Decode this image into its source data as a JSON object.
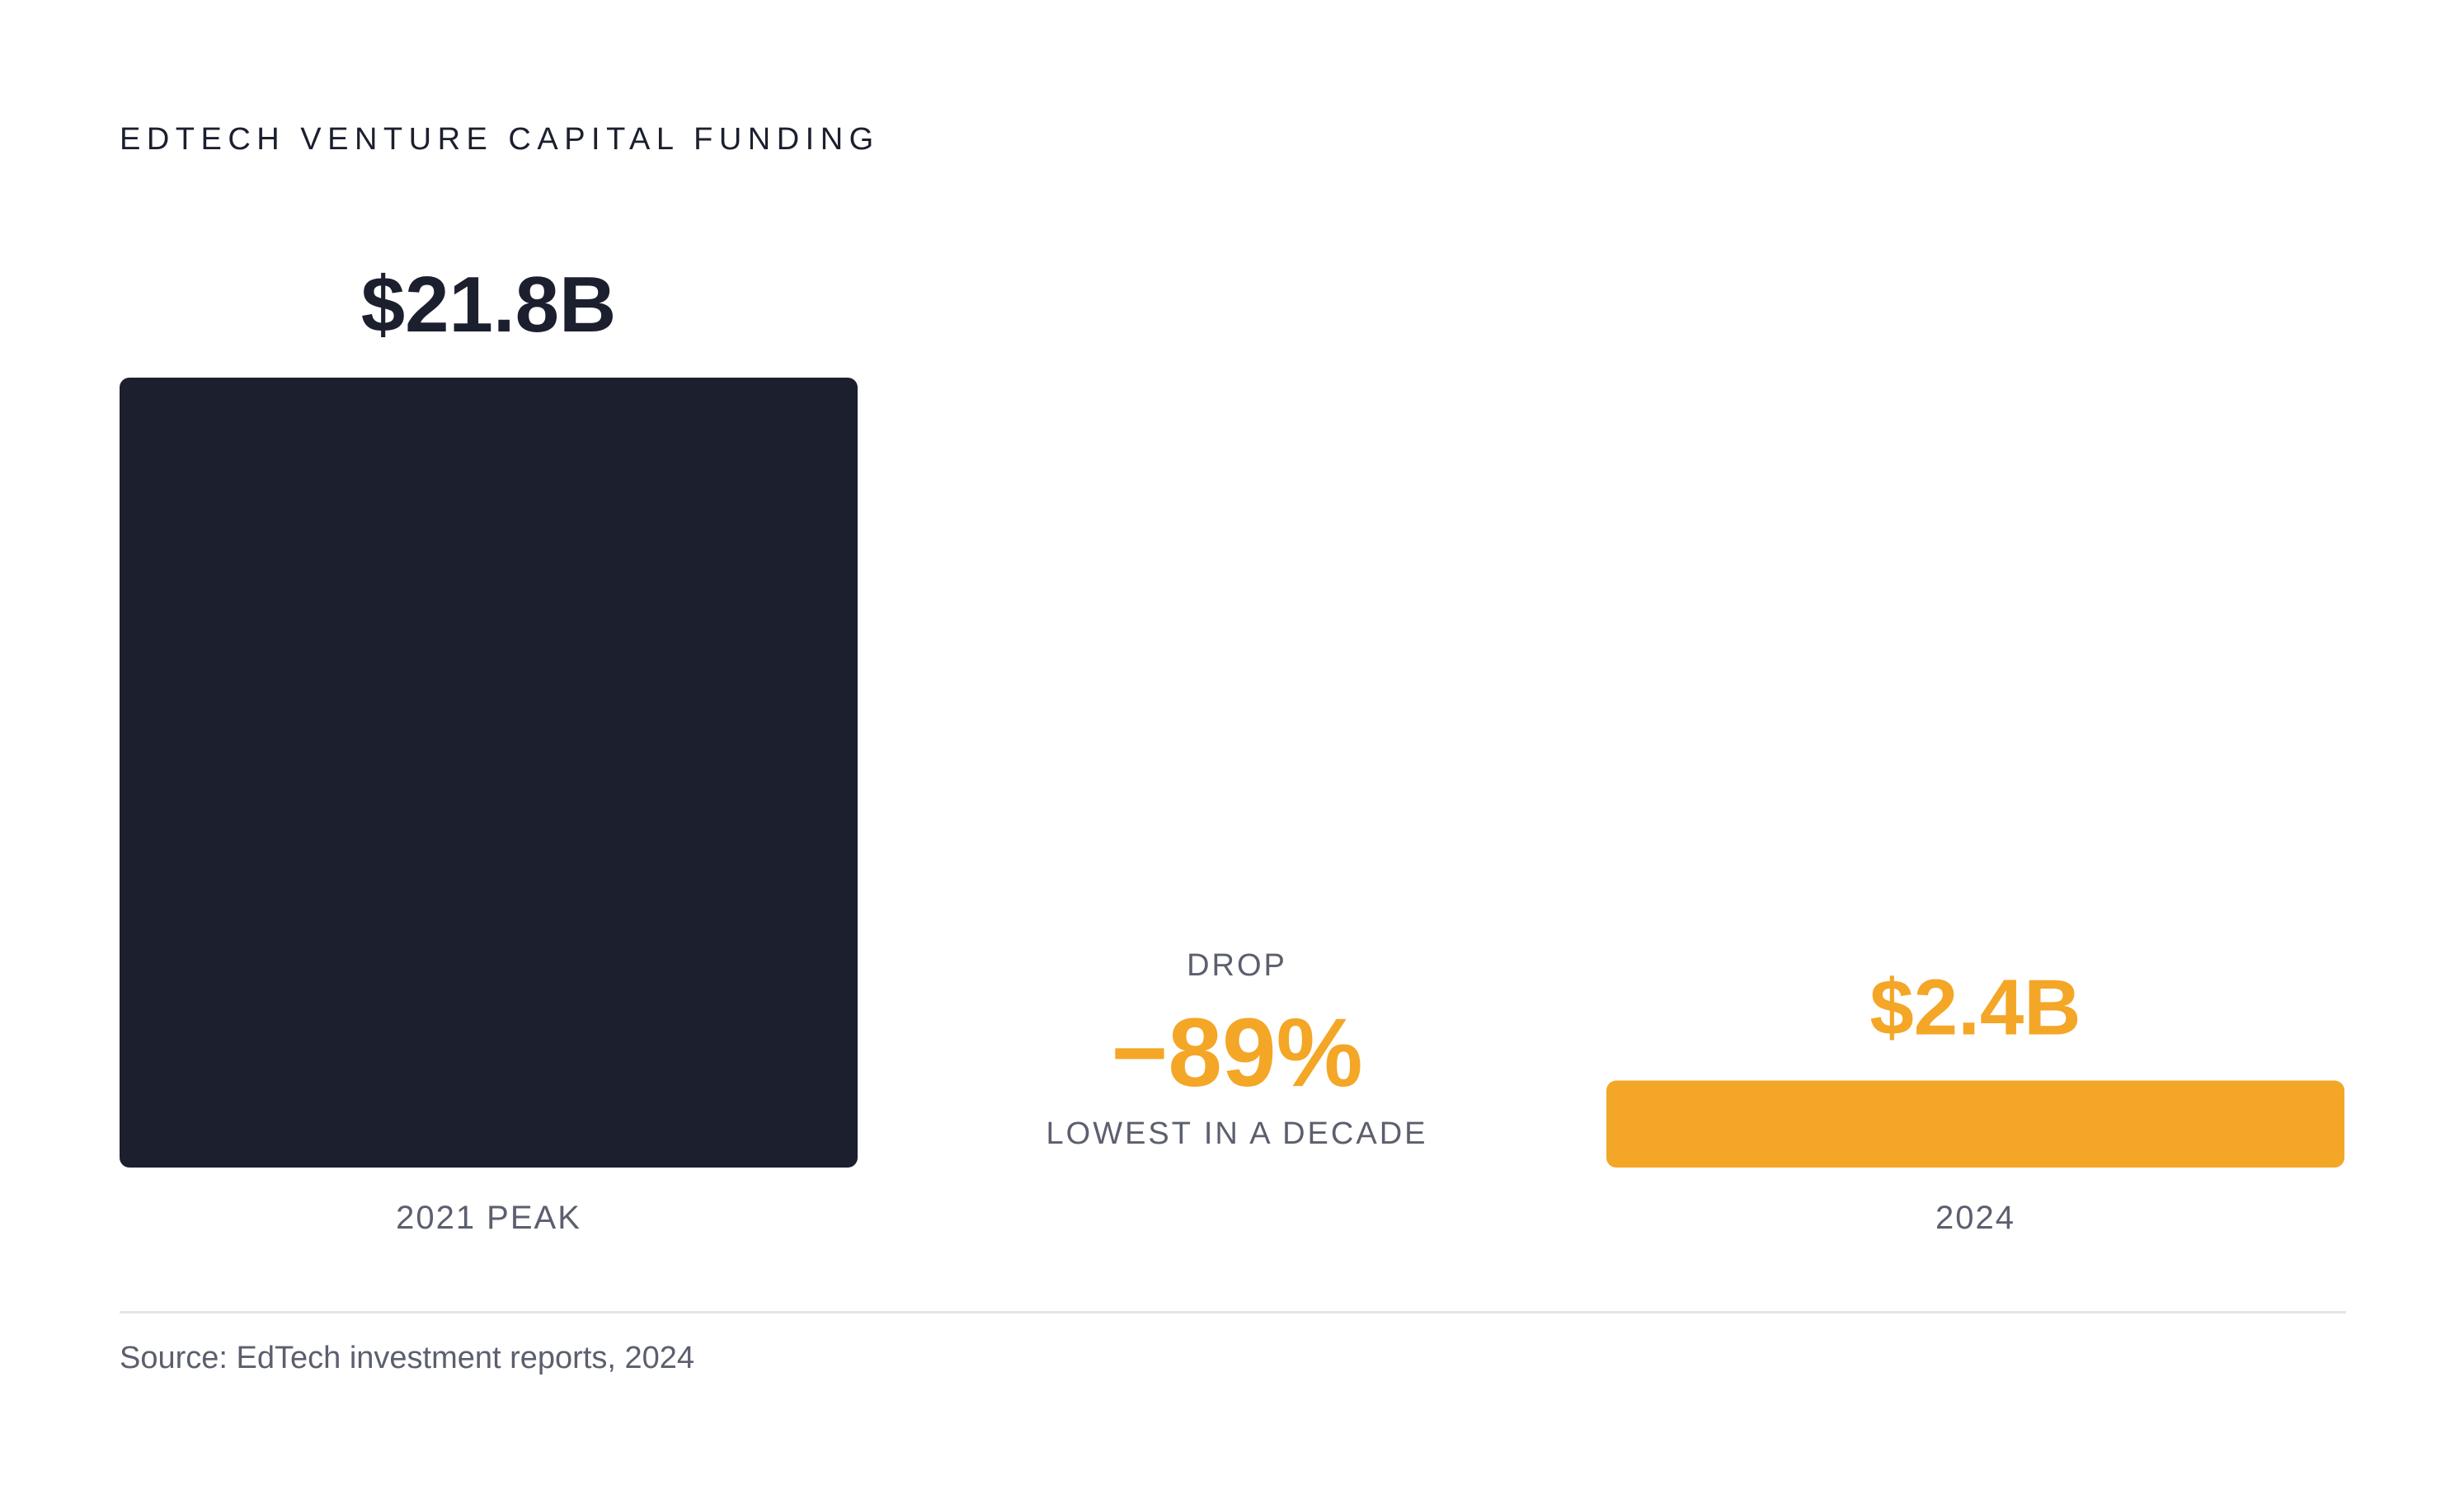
{
  "title": "EDTECH VENTURE CAPITAL FUNDING",
  "drop": {
    "label": "DROP",
    "value": "−89%",
    "note": "LOWEST IN A DECADE"
  },
  "source": "Source: EdTech investment reports, 2024",
  "colors": {
    "peak_bar": "#1c1f2e",
    "current_bar": "#f4a626",
    "accent": "#f4a626",
    "muted_text": "#5b5f6e",
    "divider": "#e4e5ea"
  },
  "chart_data": {
    "type": "bar",
    "title": "EDTECH VENTURE CAPITAL FUNDING",
    "categories": [
      "2021 PEAK",
      "2024"
    ],
    "values": [
      21.8,
      2.4
    ],
    "value_labels": [
      "$21.8B",
      "$2.4B"
    ],
    "unit": "USD billions",
    "ylim": [
      0,
      21.8
    ],
    "grid": false,
    "legend": "none",
    "bar_colors": [
      "#1c1f2e",
      "#f4a626"
    ]
  }
}
